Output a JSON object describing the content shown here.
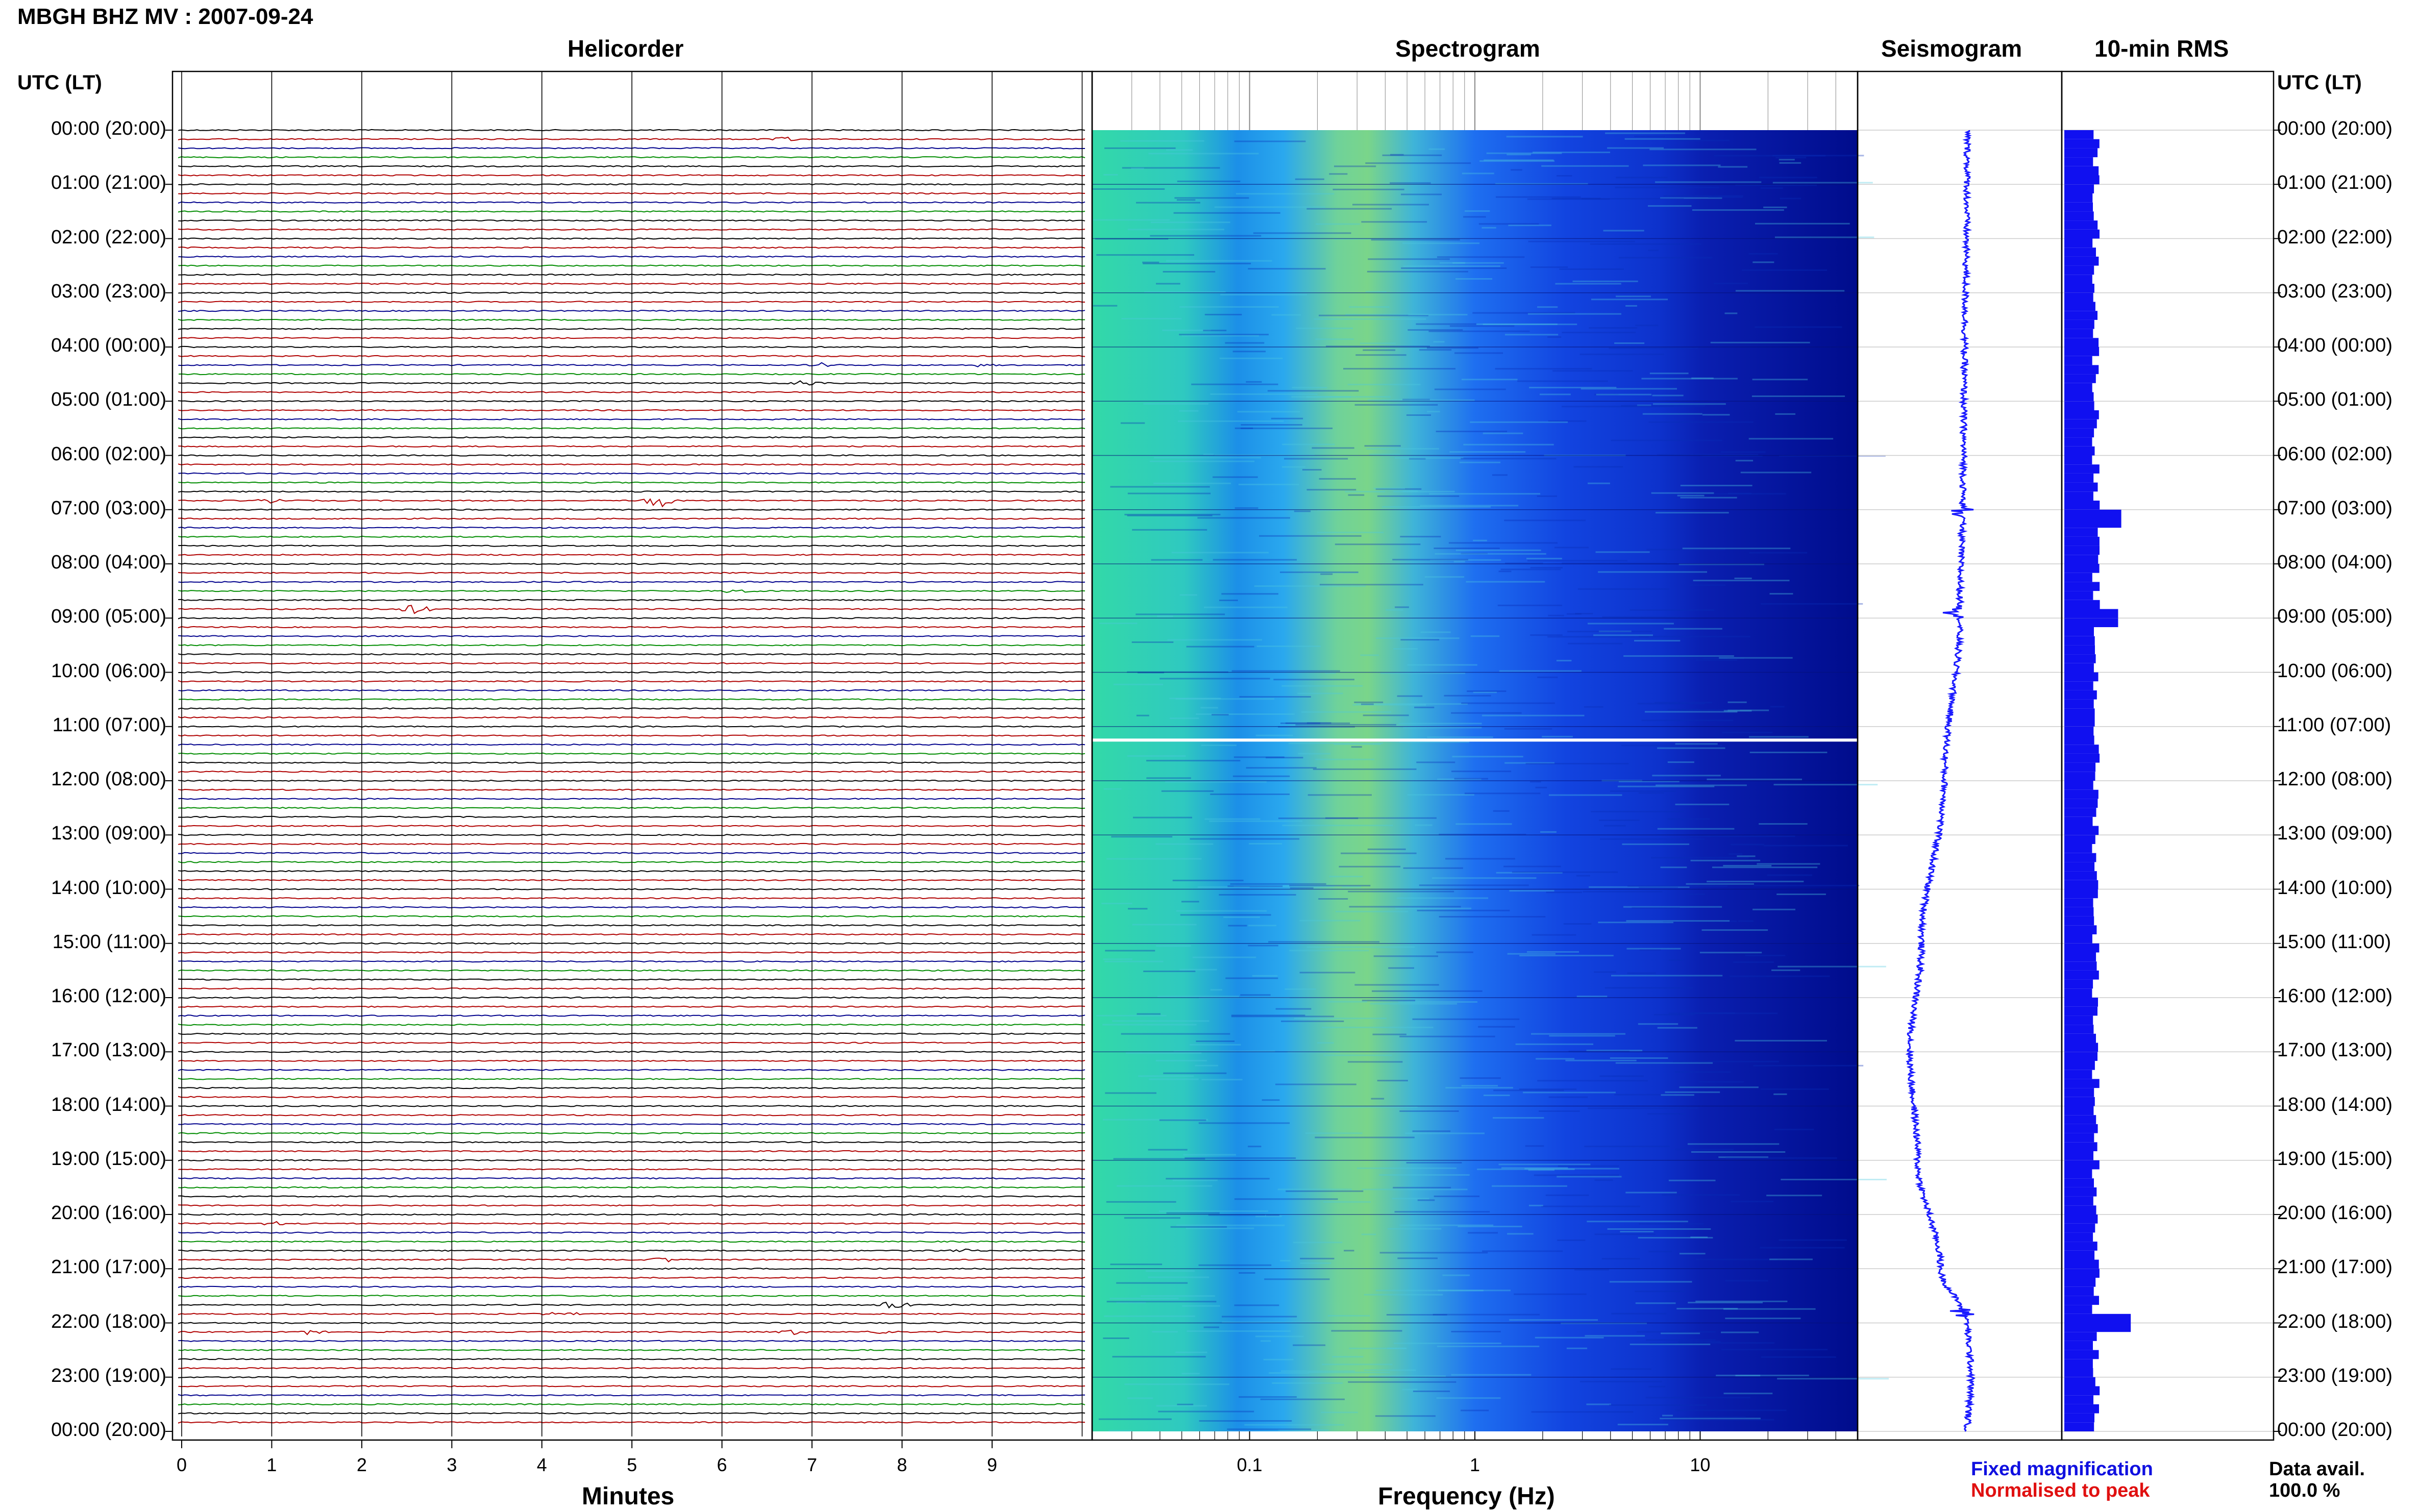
{
  "title": "MBGH BHZ MV : 2007-09-24",
  "panels": {
    "helicorder": "Helicorder",
    "spectrogram": "Spectrogram",
    "seismogram": "Seismogram",
    "rms": "10-min RMS"
  },
  "time_header_left": "UTC (LT)",
  "time_header_right": "UTC (LT)",
  "time_labels": [
    "00:00 (20:00)",
    "01:00 (21:00)",
    "02:00 (22:00)",
    "03:00 (23:00)",
    "04:00 (00:00)",
    "05:00 (01:00)",
    "06:00 (02:00)",
    "07:00 (03:00)",
    "08:00 (04:00)",
    "09:00 (05:00)",
    "10:00 (06:00)",
    "11:00 (07:00)",
    "12:00 (08:00)",
    "13:00 (09:00)",
    "14:00 (10:00)",
    "15:00 (11:00)",
    "16:00 (12:00)",
    "17:00 (13:00)",
    "18:00 (14:00)",
    "19:00 (15:00)",
    "20:00 (16:00)",
    "21:00 (17:00)",
    "22:00 (18:00)",
    "23:00 (19:00)",
    "00:00 (20:00)"
  ],
  "legend": {
    "fixed": "Fixed magnification",
    "normalised": "Normalised to peak",
    "avail_label": "Data avail.",
    "avail_value": "100.0 %"
  },
  "colors": {
    "trace_cycle": [
      "#000000",
      "#b00000",
      "#00008c",
      "#008c00"
    ],
    "seismogram": "#1a1aff",
    "rms": "#1010f0",
    "grid": "#000000"
  },
  "chart_data": [
    {
      "type": "line",
      "name": "helicorder",
      "xlabel": "Minutes",
      "x_ticks": [
        "0",
        "1",
        "2",
        "3",
        "4",
        "5",
        "6",
        "7",
        "8",
        "9"
      ],
      "xlim": [
        0,
        10
      ],
      "rows_per_hour": 6,
      "hours": 24,
      "events": [
        {
          "hour": 0,
          "row": 1,
          "minute": 6.7,
          "amp": 1.5
        },
        {
          "hour": 4,
          "row": 2,
          "minute": 7.1,
          "amp": 1.5
        },
        {
          "hour": 4,
          "row": 2,
          "minute": 8.9,
          "amp": 1.2
        },
        {
          "hour": 4,
          "row": 4,
          "minute": 6.9,
          "amp": 2.0
        },
        {
          "hour": 6,
          "row": 5,
          "minute": 5.3,
          "amp": 5.0
        },
        {
          "hour": 6,
          "row": 5,
          "minute": 1.0,
          "amp": 1.5
        },
        {
          "hour": 8,
          "row": 3,
          "minute": 6.2,
          "amp": 1.5
        },
        {
          "hour": 8,
          "row": 5,
          "minute": 2.6,
          "amp": 3.5
        },
        {
          "hour": 20,
          "row": 4,
          "minute": 8.7,
          "amp": 1.2
        },
        {
          "hour": 20,
          "row": 1,
          "minute": 1.0,
          "amp": 1.5
        },
        {
          "hour": 20,
          "row": 5,
          "minute": 5.3,
          "amp": 2.0
        },
        {
          "hour": 21,
          "row": 4,
          "minute": 7.9,
          "amp": 3.5
        },
        {
          "hour": 21,
          "row": 5,
          "minute": 4.2,
          "amp": 2.0
        },
        {
          "hour": 22,
          "row": 1,
          "minute": 1.4,
          "amp": 1.8
        },
        {
          "hour": 22,
          "row": 1,
          "minute": 6.8,
          "amp": 1.6
        },
        {
          "hour": 22,
          "row": 1,
          "minute": 7.8,
          "amp": 1.2
        }
      ]
    },
    {
      "type": "heatmap",
      "name": "spectrogram",
      "xlabel": "Frequency (Hz)",
      "x_scale": "log",
      "xlim": [
        0.02,
        50
      ],
      "x_tick_labels": [
        {
          "value": 0.1,
          "label": "0.1"
        },
        {
          "value": 1,
          "label": "1"
        },
        {
          "value": 10,
          "label": "10"
        }
      ],
      "y": "time (UTC hours 0-24)",
      "peak_frequency_hz": 0.25,
      "gap_hour": 11.25
    },
    {
      "type": "line",
      "name": "seismogram",
      "xlabel": "",
      "description_values": {
        "hours": [
          0,
          6,
          9,
          12,
          15,
          17,
          19,
          21,
          22,
          23,
          24
        ],
        "offset": [
          0,
          -0.05,
          -0.1,
          -0.3,
          -0.6,
          -0.75,
          -0.65,
          -0.35,
          0,
          0.05,
          0
        ]
      },
      "spikes_hours": [
        7.05,
        8.9,
        21.8
      ]
    },
    {
      "type": "bar",
      "name": "rms",
      "xlabel": "",
      "bins_per_hour": 6,
      "spike_bins": [
        {
          "hour": 7.05,
          "value": 1.8
        },
        {
          "hour": 8.9,
          "value": 1.7
        },
        {
          "hour": 21.9,
          "value": 2.1
        }
      ],
      "baseline": 1.0
    }
  ]
}
